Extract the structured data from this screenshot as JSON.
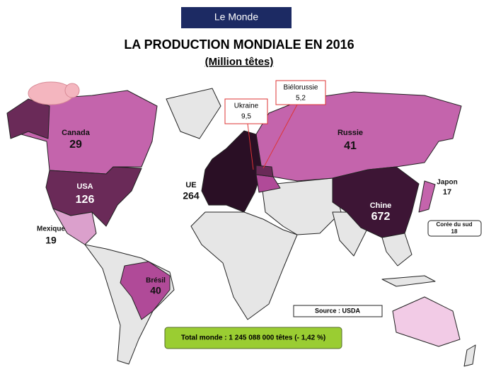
{
  "header": {
    "title": "Le Monde"
  },
  "title": "LA PRODUCTION MONDIALE EN 2016",
  "subtitle": "(Million têtes)",
  "regions": [
    {
      "name": "Canada",
      "value": "29"
    },
    {
      "name": "USA",
      "value": "126"
    },
    {
      "name": "Mexique",
      "value": "19"
    },
    {
      "name": "Brésil",
      "value": "40"
    },
    {
      "name": "UE",
      "value": "264"
    },
    {
      "name": "Russie",
      "value": "41"
    },
    {
      "name": "Chine",
      "value": "672"
    },
    {
      "name": "Japon",
      "value": "17"
    },
    {
      "name": "Corée du sud",
      "value": "18"
    }
  ],
  "callouts": [
    {
      "name": "Ukraine",
      "value": "9,5"
    },
    {
      "name": "Biélorussie",
      "value": "5,2"
    }
  ],
  "source": "Source : USDA",
  "total": "Total monde : 1 245 088 000 têtes (- 1,42 %)"
}
